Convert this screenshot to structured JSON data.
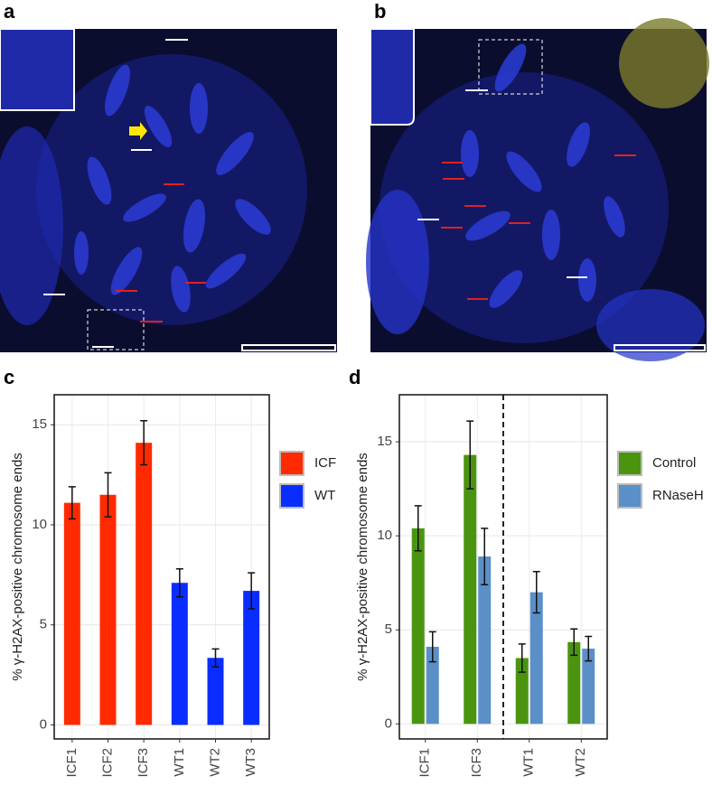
{
  "image_panels": [
    {
      "label": "a"
    },
    {
      "label": "b"
    }
  ],
  "chart_data": [
    {
      "type": "bar",
      "panel_label": "c",
      "dodge": false,
      "categories": [
        "ICF1",
        "ICF2",
        "ICF3",
        "WT1",
        "WT2",
        "WT3"
      ],
      "series": [
        {
          "name": "ICF",
          "color": "#ff2a00",
          "values": [
            11.1,
            11.5,
            14.1,
            null,
            null,
            null
          ],
          "errors": [
            0.8,
            1.1,
            1.1,
            null,
            null,
            null
          ]
        },
        {
          "name": "WT",
          "color": "#0a2dff",
          "values": [
            null,
            null,
            null,
            7.1,
            3.35,
            6.7
          ],
          "errors": [
            null,
            null,
            null,
            0.7,
            0.45,
            0.9
          ]
        }
      ],
      "ylabel": "% γ-H2AX-positive chromosome ends",
      "ylim": [
        -0.7,
        16.5
      ],
      "yticks": [
        0,
        5,
        10,
        15
      ],
      "grid": true,
      "legend": "right"
    },
    {
      "type": "bar",
      "panel_label": "d",
      "dodge": true,
      "categories": [
        "ICF1",
        "ICF3",
        "WT1",
        "WT2"
      ],
      "series": [
        {
          "name": "Control",
          "color": "#4b9410",
          "values": [
            10.4,
            14.3,
            3.5,
            4.35
          ],
          "errors": [
            1.2,
            1.8,
            0.75,
            0.7
          ]
        },
        {
          "name": "RNaseH",
          "color": "#5b8fc7",
          "values": [
            4.1,
            8.9,
            7.0,
            4.0
          ],
          "errors": [
            0.8,
            1.5,
            1.1,
            0.65
          ]
        }
      ],
      "ylabel": "% γ-H2AX-positive chromosome ends",
      "ylim": [
        -0.8,
        17.5
      ],
      "yticks": [
        0,
        5,
        10,
        15
      ],
      "grid": true,
      "legend": "right"
    }
  ]
}
